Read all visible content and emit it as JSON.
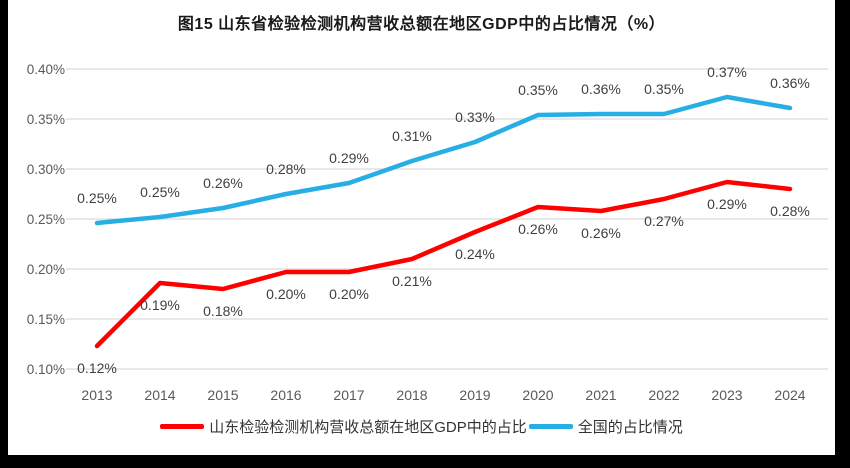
{
  "colors": {
    "frame": "#000000",
    "background": "#FFFFFF",
    "grid": "#D9D9D9",
    "tick_text": "#595959",
    "category_text": "#595959",
    "data_label_text": "#404040",
    "title_text": "#1A1A1A",
    "legend_text": "#333333"
  },
  "chart_data": {
    "type": "line",
    "title": "图15  山东省检验检测机构营收总额在地区GDP中的占比情况（%）",
    "categories": [
      "2013",
      "2014",
      "2015",
      "2016",
      "2017",
      "2018",
      "2019",
      "2020",
      "2021",
      "2022",
      "2023",
      "2024"
    ],
    "y_axis": {
      "tick_labels": [
        "0.40%",
        "0.35%",
        "0.30%",
        "0.25%",
        "0.20%",
        "0.15%",
        "0.10%"
      ],
      "min": 0.1,
      "max": 0.4,
      "step": 0.05,
      "format": "percent"
    },
    "grid": "horizontal",
    "legend_position": "bottom",
    "series": [
      {
        "name": "山东检验检测机构营收总额在地区GDP中的占比",
        "color": "#FE0000",
        "label_position": "below",
        "labels": [
          "0.12%",
          "0.19%",
          "0.18%",
          "0.20%",
          "0.20%",
          "0.21%",
          "0.24%",
          "0.26%",
          "0.26%",
          "0.27%",
          "0.29%",
          "0.28%"
        ],
        "values": [
          0.12,
          0.19,
          0.18,
          0.2,
          0.2,
          0.21,
          0.24,
          0.26,
          0.26,
          0.27,
          0.29,
          0.28
        ],
        "plot_values": [
          0.123,
          0.186,
          0.18,
          0.197,
          0.197,
          0.21,
          0.237,
          0.262,
          0.258,
          0.27,
          0.287,
          0.28
        ]
      },
      {
        "name": "全国的占比情况",
        "color": "#27AEE4",
        "label_position": "above",
        "labels": [
          "0.25%",
          "0.25%",
          "0.26%",
          "0.28%",
          "0.29%",
          "0.31%",
          "0.33%",
          "0.35%",
          "0.36%",
          "0.35%",
          "0.37%",
          "0.36%"
        ],
        "values": [
          0.25,
          0.25,
          0.26,
          0.28,
          0.29,
          0.31,
          0.33,
          0.35,
          0.36,
          0.35,
          0.37,
          0.36
        ],
        "plot_values": [
          0.246,
          0.252,
          0.261,
          0.275,
          0.286,
          0.308,
          0.327,
          0.354,
          0.355,
          0.355,
          0.372,
          0.361
        ]
      }
    ]
  }
}
